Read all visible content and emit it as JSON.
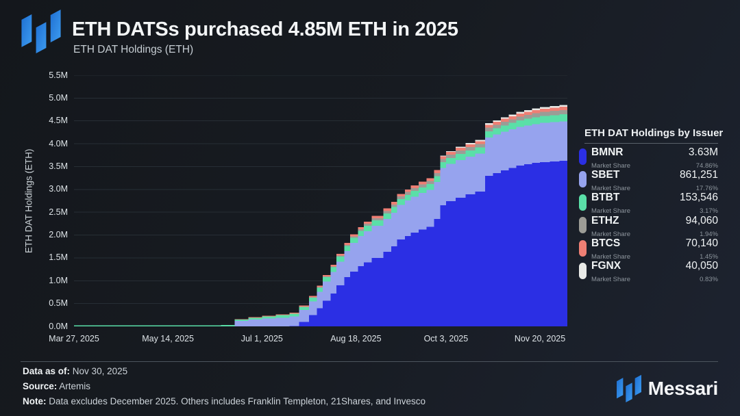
{
  "header": {
    "title": "ETH DATSs purchased 4.85M ETH in 2025",
    "subtitle": "ETH DAT Holdings (ETH)"
  },
  "colors": {
    "background": "#171b21",
    "grid": "#272e35",
    "brand_blue": "#2b84e4",
    "bmnr": "#2b2fe4",
    "sbet": "#96a3ee",
    "btbt": "#5adfa8",
    "ethz": "#9c9c96",
    "btcs": "#ee7f74",
    "fgnx": "#e9eae7"
  },
  "chart_data": {
    "type": "area",
    "stacked": true,
    "step": true,
    "title": "ETH DAT Holdings (ETH)",
    "xlabel": "",
    "ylabel": "ETH DAT Holdings (ETH)",
    "unit": "million ETH",
    "ylim_m": [
      0,
      5.5
    ],
    "x_domain_days": [
      0,
      252
    ],
    "x_start_date": "Mar 27, 2025",
    "x_end_date": "Nov 30, 2025",
    "grid": true,
    "legend_position": "right",
    "y_ticks": [
      {
        "label": "5.5M",
        "value": 5.5
      },
      {
        "label": "5.0M",
        "value": 5.0
      },
      {
        "label": "4.5M",
        "value": 4.5
      },
      {
        "label": "4.0M",
        "value": 4.0
      },
      {
        "label": "3.5M",
        "value": 3.5
      },
      {
        "label": "3.0M",
        "value": 3.0
      },
      {
        "label": "2.5M",
        "value": 2.5
      },
      {
        "label": "2.0M",
        "value": 2.0
      },
      {
        "label": "1.5M",
        "value": 1.5
      },
      {
        "label": "1.0M",
        "value": 1.0
      },
      {
        "label": "0.5M",
        "value": 0.5
      },
      {
        "label": "0.0M",
        "value": 0.0
      }
    ],
    "x_ticks": [
      {
        "label": "Mar 27, 2025",
        "day": 0
      },
      {
        "label": "May 14, 2025",
        "day": 48
      },
      {
        "label": "Jul 1, 2025",
        "day": 96
      },
      {
        "label": "Aug 18, 2025",
        "day": 144
      },
      {
        "label": "Oct 3, 2025",
        "day": 190
      },
      {
        "label": "Nov 20, 2025",
        "day": 238
      }
    ],
    "days": [
      0,
      20,
      40,
      60,
      70,
      75,
      82,
      89,
      96,
      103,
      110,
      115,
      120,
      124,
      127,
      131,
      134,
      138,
      141,
      145,
      148,
      152,
      158,
      162,
      165,
      169,
      172,
      176,
      180,
      184,
      187,
      190,
      195,
      200,
      205,
      210,
      214,
      218,
      222,
      226,
      230,
      234,
      238,
      243,
      248
    ],
    "series": [
      {
        "name": "BMNR",
        "color": "#2b2fe4",
        "values": [
          0,
          0,
          0,
          0,
          0,
          0,
          0,
          0,
          0,
          0,
          0.01,
          0.1,
          0.25,
          0.4,
          0.56,
          0.72,
          0.9,
          1.08,
          1.2,
          1.32,
          1.4,
          1.5,
          1.63,
          1.75,
          1.9,
          1.98,
          2.05,
          2.12,
          2.18,
          2.35,
          2.65,
          2.74,
          2.82,
          2.89,
          2.95,
          3.3,
          3.36,
          3.42,
          3.47,
          3.52,
          3.55,
          3.58,
          3.6,
          3.615,
          3.63
        ]
      },
      {
        "name": "SBET",
        "color": "#96a3ee",
        "values": [
          0,
          0,
          0,
          0,
          0,
          0,
          0.12,
          0.15,
          0.17,
          0.19,
          0.21,
          0.26,
          0.3,
          0.36,
          0.42,
          0.47,
          0.52,
          0.57,
          0.625,
          0.655,
          0.68,
          0.7,
          0.72,
          0.74,
          0.76,
          0.775,
          0.79,
          0.8,
          0.81,
          0.815,
          0.818,
          0.82,
          0.825,
          0.83,
          0.835,
          0.84,
          0.842,
          0.845,
          0.847,
          0.849,
          0.85,
          0.852,
          0.855,
          0.858,
          0.8613
        ]
      },
      {
        "name": "BTBT",
        "color": "#5adfa8",
        "values": [
          0.02,
          0.021,
          0.022,
          0.025,
          0.026,
          0.028,
          0.03,
          0.04,
          0.05,
          0.055,
          0.06,
          0.07,
          0.08,
          0.09,
          0.1,
          0.105,
          0.11,
          0.112,
          0.115,
          0.118,
          0.12,
          0.121,
          0.122,
          0.123,
          0.124,
          0.125,
          0.125,
          0.126,
          0.127,
          0.128,
          0.129,
          0.13,
          0.131,
          0.132,
          0.133,
          0.134,
          0.135,
          0.136,
          0.138,
          0.14,
          0.145,
          0.15,
          0.152,
          0.153,
          0.1535
        ]
      },
      {
        "name": "ETHZ",
        "color": "#9c9c96",
        "values": [
          0,
          0,
          0,
          0,
          0,
          0,
          0,
          0,
          0,
          0,
          0,
          0,
          0.01,
          0.012,
          0.015,
          0.018,
          0.02,
          0.025,
          0.03,
          0.038,
          0.045,
          0.05,
          0.055,
          0.058,
          0.06,
          0.062,
          0.063,
          0.065,
          0.066,
          0.067,
          0.068,
          0.07,
          0.072,
          0.074,
          0.075,
          0.077,
          0.078,
          0.08,
          0.081,
          0.083,
          0.085,
          0.087,
          0.09,
          0.092,
          0.094
        ]
      },
      {
        "name": "BTCS",
        "color": "#ee7f74",
        "values": [
          0,
          0,
          0,
          0,
          0,
          0.005,
          0.008,
          0.012,
          0.014,
          0.017,
          0.02,
          0.025,
          0.029,
          0.03,
          0.032,
          0.034,
          0.036,
          0.039,
          0.042,
          0.045,
          0.048,
          0.05,
          0.055,
          0.056,
          0.057,
          0.0575,
          0.058,
          0.059,
          0.06,
          0.061,
          0.0615,
          0.062,
          0.063,
          0.063,
          0.064,
          0.065,
          0.065,
          0.066,
          0.066,
          0.067,
          0.068,
          0.068,
          0.069,
          0.0695,
          0.0701
        ]
      },
      {
        "name": "FGNX",
        "color": "#e9eae7",
        "values": [
          0,
          0,
          0,
          0,
          0,
          0,
          0,
          0,
          0,
          0,
          0,
          0,
          0,
          0,
          0,
          0,
          0,
          0,
          0,
          0,
          0,
          0,
          0,
          0,
          0,
          0,
          0,
          0,
          0,
          0.005,
          0.01,
          0.015,
          0.02,
          0.025,
          0.028,
          0.032,
          0.034,
          0.035,
          0.036,
          0.037,
          0.038,
          0.038,
          0.039,
          0.0395,
          0.0401
        ]
      }
    ]
  },
  "legend": {
    "title": "ETH DAT Holdings by Issuer",
    "share_label": "Market Share",
    "items": [
      {
        "ticker": "BMNR",
        "value": "3.63M",
        "share": "74.86%"
      },
      {
        "ticker": "SBET",
        "value": "861,251",
        "share": "17.76%"
      },
      {
        "ticker": "BTBT",
        "value": "153,546",
        "share": "3.17%"
      },
      {
        "ticker": "ETHZ",
        "value": "94,060",
        "share": "1.94%"
      },
      {
        "ticker": "BTCS",
        "value": "70,140",
        "share": "1.45%"
      },
      {
        "ticker": "FGNX",
        "value": "40,050",
        "share": "0.83%"
      }
    ]
  },
  "footer": {
    "data_as_of_label": "Data as of:",
    "data_as_of": "Nov 30, 2025",
    "source_label": "Source:",
    "source": "Artemis",
    "note_label": "Note:",
    "note": "Data excludes December 2025. Others includes Franklin Templeton, 21Shares, and Invesco"
  },
  "branding": {
    "wordmark": "Messari"
  }
}
